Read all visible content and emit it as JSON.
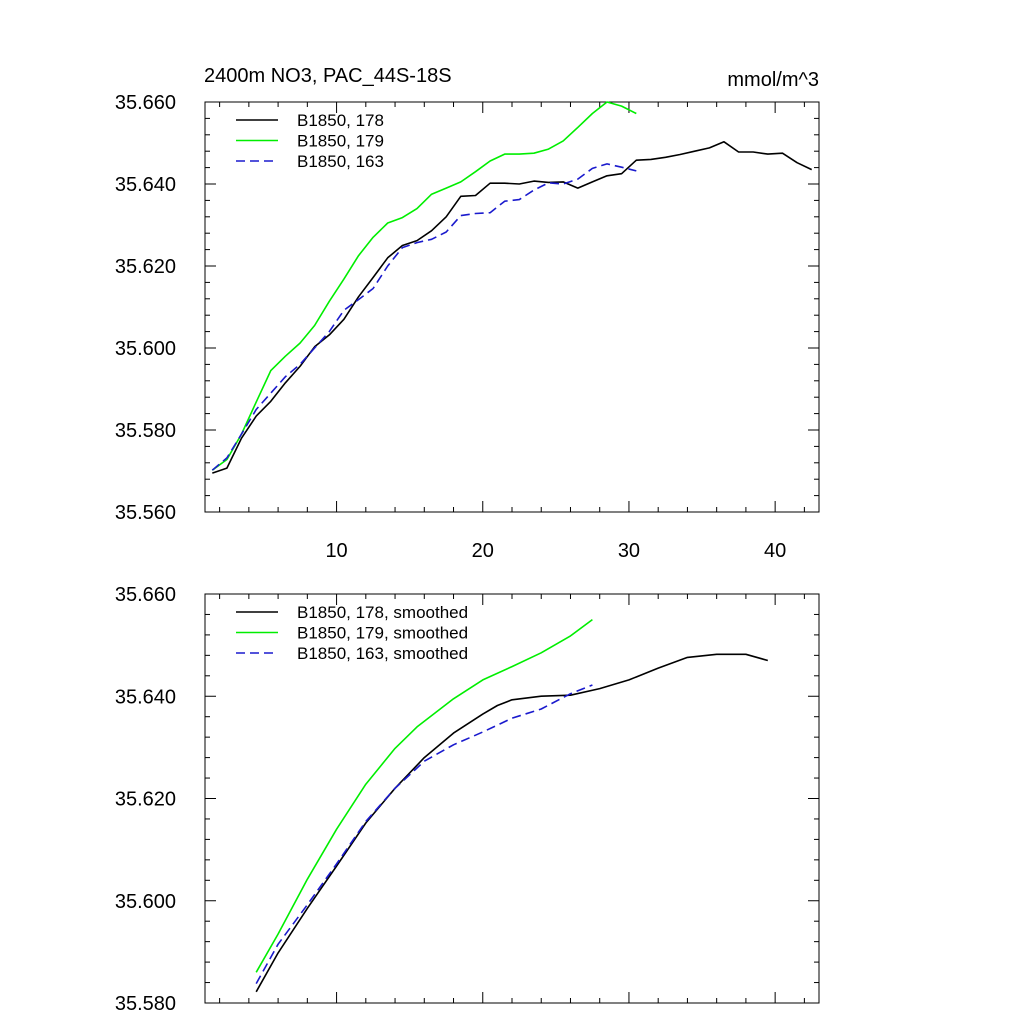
{
  "title": "2400m NO3, PAC_44S-18S",
  "units": "mmol/m^3",
  "colors": {
    "black": "#000000",
    "green": "#00ee00",
    "blue": "#1a1acd"
  },
  "chart_data": [
    {
      "type": "line",
      "xlim": [
        1,
        43
      ],
      "ylim": [
        35.56,
        35.66
      ],
      "x_ticks": [
        10,
        20,
        30,
        40
      ],
      "x_tick_labels": [
        "10",
        "20",
        "30",
        "40"
      ],
      "y_ticks": [
        35.56,
        35.58,
        35.6,
        35.62,
        35.64,
        35.66
      ],
      "y_tick_labels": [
        "35.560",
        "35.580",
        "35.600",
        "35.620",
        "35.640",
        "35.660"
      ],
      "legend_position": "top-left",
      "grid": false,
      "series": [
        {
          "name": "B1850, 178",
          "color": "#000000",
          "dash": "solid",
          "x": [
            1.5,
            2.5,
            3.5,
            4.5,
            5.5,
            6.5,
            7.5,
            8.5,
            9.5,
            10.5,
            11.5,
            12.5,
            13.5,
            14.5,
            15.5,
            16.5,
            17.5,
            18.5,
            19.5,
            20.5,
            21.5,
            22.5,
            23.5,
            24.5,
            25.5,
            26.5,
            27.5,
            28.5,
            29.5,
            30.5,
            31.5,
            32.5,
            33.5,
            34.5,
            35.5,
            36.5,
            37.5,
            38.5,
            39.5,
            40.5,
            41.5,
            42.5
          ],
          "y": [
            35.5695,
            35.5707,
            35.578,
            35.5834,
            35.587,
            35.5915,
            35.5955,
            35.6003,
            35.6032,
            35.607,
            35.6125,
            35.6172,
            35.622,
            35.625,
            35.6262,
            35.6286,
            35.632,
            35.637,
            35.6372,
            35.6402,
            35.6402,
            35.64,
            35.6407,
            35.6404,
            35.6405,
            35.639,
            35.6405,
            35.642,
            35.6425,
            35.6458,
            35.646,
            35.6465,
            35.6472,
            35.648,
            35.6488,
            35.6503,
            35.6478,
            35.6478,
            35.6473,
            35.6475,
            35.6452,
            35.6435
          ]
        },
        {
          "name": "B1850, 179",
          "color": "#00ee00",
          "dash": "solid",
          "x": [
            1.5,
            2.5,
            3.5,
            4.5,
            5.5,
            6.5,
            7.5,
            8.5,
            9.5,
            10.5,
            11.5,
            12.5,
            13.5,
            14.5,
            15.5,
            16.5,
            17.5,
            18.5,
            19.5,
            20.5,
            21.5,
            22.5,
            23.5,
            24.5,
            25.5,
            26.5,
            27.5,
            28.5,
            29.5,
            30.5
          ],
          "y": [
            35.5702,
            35.5728,
            35.579,
            35.5868,
            35.5945,
            35.598,
            35.6012,
            35.6055,
            35.6114,
            35.6168,
            35.6225,
            35.627,
            35.6305,
            35.6318,
            35.634,
            35.6375,
            35.639,
            35.6405,
            35.643,
            35.6456,
            35.6473,
            35.6473,
            35.6475,
            35.6485,
            35.6505,
            35.6538,
            35.6572,
            35.66,
            35.659,
            35.6572
          ]
        },
        {
          "name": "B1850, 163",
          "color": "#1a1acd",
          "dash": "dashed",
          "x": [
            1.5,
            2.5,
            3.5,
            4.5,
            5.5,
            6.5,
            7.5,
            8.5,
            9.5,
            10.5,
            11.5,
            12.5,
            13.5,
            14.5,
            15.5,
            16.5,
            17.5,
            18.5,
            19.5,
            20.5,
            21.5,
            22.5,
            23.5,
            24.5,
            25.5,
            26.5,
            27.5,
            28.5,
            29.5,
            30.5
          ],
          "y": [
            35.5702,
            35.5732,
            35.579,
            35.585,
            35.589,
            35.593,
            35.596,
            35.6,
            35.604,
            35.6092,
            35.6118,
            35.6145,
            35.62,
            35.6245,
            35.6257,
            35.6265,
            35.6283,
            35.6323,
            35.6328,
            35.633,
            35.6358,
            35.6362,
            35.6385,
            35.6403,
            35.64,
            35.6412,
            35.6438,
            35.6449,
            35.6441,
            35.6432
          ]
        }
      ]
    },
    {
      "type": "line",
      "xlim": [
        1,
        43
      ],
      "ylim": [
        35.58,
        35.66
      ],
      "x_ticks": [
        10,
        20,
        30,
        40
      ],
      "x_tick_labels": [],
      "y_ticks": [
        35.58,
        35.6,
        35.62,
        35.64,
        35.66
      ],
      "y_tick_labels": [
        "35.580",
        "35.600",
        "35.620",
        "35.640",
        "35.660"
      ],
      "legend_position": "top-left",
      "grid": false,
      "series": [
        {
          "name": "B1850, 178, smoothed",
          "color": "#000000",
          "dash": "solid",
          "x": [
            4.5,
            6,
            8,
            10,
            12,
            14,
            16,
            18,
            20,
            21,
            22,
            24,
            26,
            28,
            30,
            32,
            34,
            36,
            38,
            39.5
          ],
          "y": [
            35.5822,
            35.5898,
            35.5985,
            35.6068,
            35.6152,
            35.622,
            35.628,
            35.6328,
            35.6365,
            35.6382,
            35.6393,
            35.64,
            35.6402,
            35.6415,
            35.6432,
            35.6455,
            35.6476,
            35.6482,
            35.6482,
            35.647
          ]
        },
        {
          "name": "B1850, 179, smoothed",
          "color": "#00ee00",
          "dash": "solid",
          "x": [
            4.5,
            6,
            8,
            10,
            12,
            14,
            15.5,
            18,
            20,
            22,
            24,
            26,
            27.5
          ],
          "y": [
            35.586,
            35.5935,
            35.6042,
            35.614,
            35.6228,
            35.6298,
            35.634,
            35.6395,
            35.6432,
            35.6458,
            35.6485,
            35.6518,
            35.655
          ]
        },
        {
          "name": "B1850, 163, smoothed",
          "color": "#1a1acd",
          "dash": "dashed",
          "x": [
            4.5,
            6,
            8,
            10,
            12,
            14,
            16,
            18,
            20,
            22,
            24,
            26,
            27.5
          ],
          "y": [
            35.5838,
            35.5915,
            35.5992,
            35.6072,
            35.6155,
            35.622,
            35.6273,
            35.6305,
            35.633,
            35.6357,
            35.6375,
            35.6405,
            35.6422
          ]
        }
      ]
    }
  ]
}
